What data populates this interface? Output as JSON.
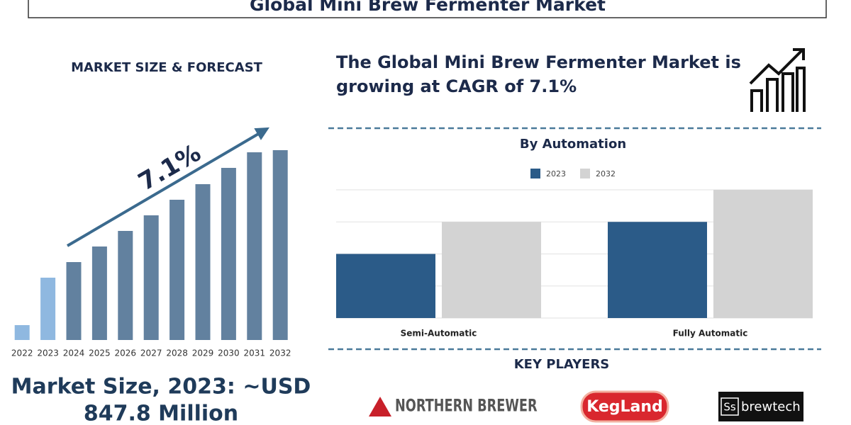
{
  "header": {
    "title": "Global Mini Brew Fermenter Market"
  },
  "market": {
    "heading": "MARKET SIZE & FORECAST",
    "size_label": "Market Size, 2023: ~USD",
    "size_value": "847.8 Million"
  },
  "headline": {
    "line1": "The Global Mini Brew Fermenter Market is",
    "line2": "growing at CAGR of 7.1%"
  },
  "chart_data": [
    {
      "type": "bar",
      "categories": [
        "2022",
        "2023",
        "2024",
        "2025",
        "2026",
        "2027",
        "2028",
        "2029",
        "2030",
        "2031",
        "2032"
      ],
      "values": [
        21,
        88,
        110,
        132,
        154,
        176,
        198,
        220,
        243,
        265,
        268
      ],
      "colors": [
        "#8fb8e0",
        "#8fb8e0",
        "#62819f",
        "#62819f",
        "#62819f",
        "#62819f",
        "#62819f",
        "#62819f",
        "#62819f",
        "#62819f",
        "#62819f"
      ],
      "annotation": "7.1%"
    },
    {
      "type": "grouped_bar",
      "title": "By Automation",
      "categories": [
        "Semi-Automatic",
        "Fully Automatic"
      ],
      "series": [
        {
          "name": "2023",
          "color": "#2b5b88",
          "values": [
            2,
            3
          ]
        },
        {
          "name": "2032",
          "color": "#d3d3d3",
          "values": [
            3,
            4
          ]
        }
      ],
      "ylim": [
        0,
        4
      ],
      "yticks": [
        0,
        1,
        2,
        3,
        4
      ],
      "ytick_labels": false,
      "grid": true
    }
  ],
  "key_players": {
    "title": "KEY PLAYERS",
    "logos": [
      "NORTHERN BREWER",
      "KegLand",
      "Ss",
      "brewtech"
    ]
  }
}
